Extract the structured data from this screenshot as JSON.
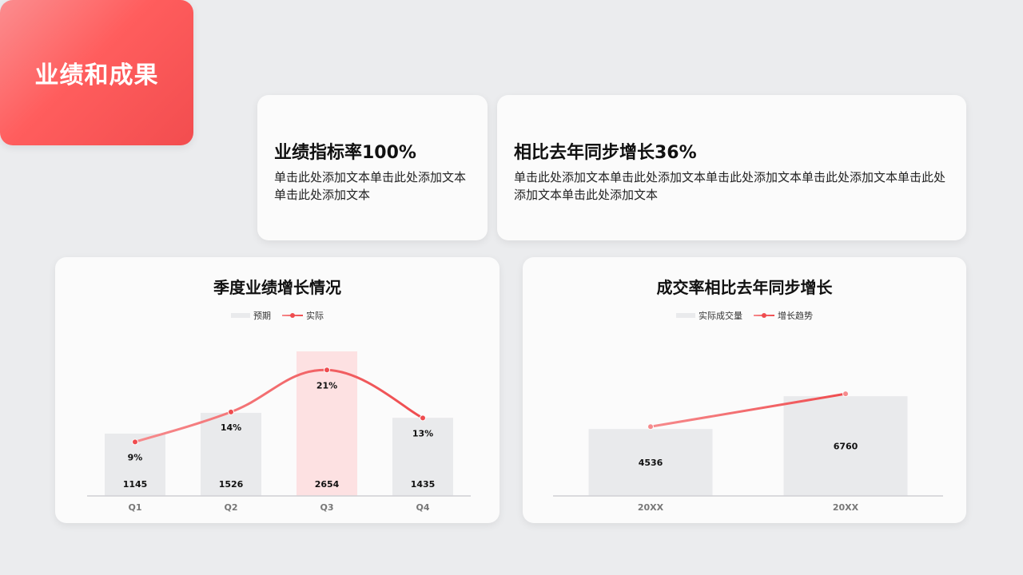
{
  "hero": {
    "title": "业绩和成果"
  },
  "metrics": [
    {
      "title": "业绩指标率100%",
      "text": "单击此处添加文本单击此处添加文本单击此处添加文本"
    },
    {
      "title": "相比去年同步增长36%",
      "text": "单击此处添加文本单击此处添加文本单击此处添加文本单击此处添加文本单击此处添加文本单击此处添加文本"
    }
  ],
  "colors": {
    "accent": "#ef4c4f",
    "accent_light": "#f68b8d",
    "bar": "#e9eaec",
    "bar_highlight": "#fde1e2"
  },
  "chart_data": [
    {
      "type": "bar",
      "title": "季度业绩增长情况",
      "categories": [
        "Q1",
        "Q2",
        "Q3",
        "Q4"
      ],
      "series": [
        {
          "name": "预期",
          "type": "bar",
          "values": [
            1145,
            1526,
            2654,
            1435
          ]
        },
        {
          "name": "实际",
          "type": "line",
          "values": [
            9,
            14,
            21,
            13
          ],
          "labels": [
            "9%",
            "14%",
            "21%",
            "13%"
          ]
        }
      ],
      "highlight_index": 2,
      "ylim": [
        0,
        2654
      ],
      "ylim_line": [
        0,
        24.1
      ],
      "legend": "top-center"
    },
    {
      "type": "bar",
      "title": "成交率相比去年同步增长",
      "categories": [
        "20XX",
        "20XX"
      ],
      "series": [
        {
          "name": "实际成交量",
          "type": "bar",
          "values": [
            4536,
            6760
          ]
        },
        {
          "name": "增长趋势",
          "type": "line",
          "values": [
            4536,
            6760
          ]
        }
      ],
      "ylim": [
        0,
        9800
      ],
      "legend": "top-center"
    }
  ]
}
